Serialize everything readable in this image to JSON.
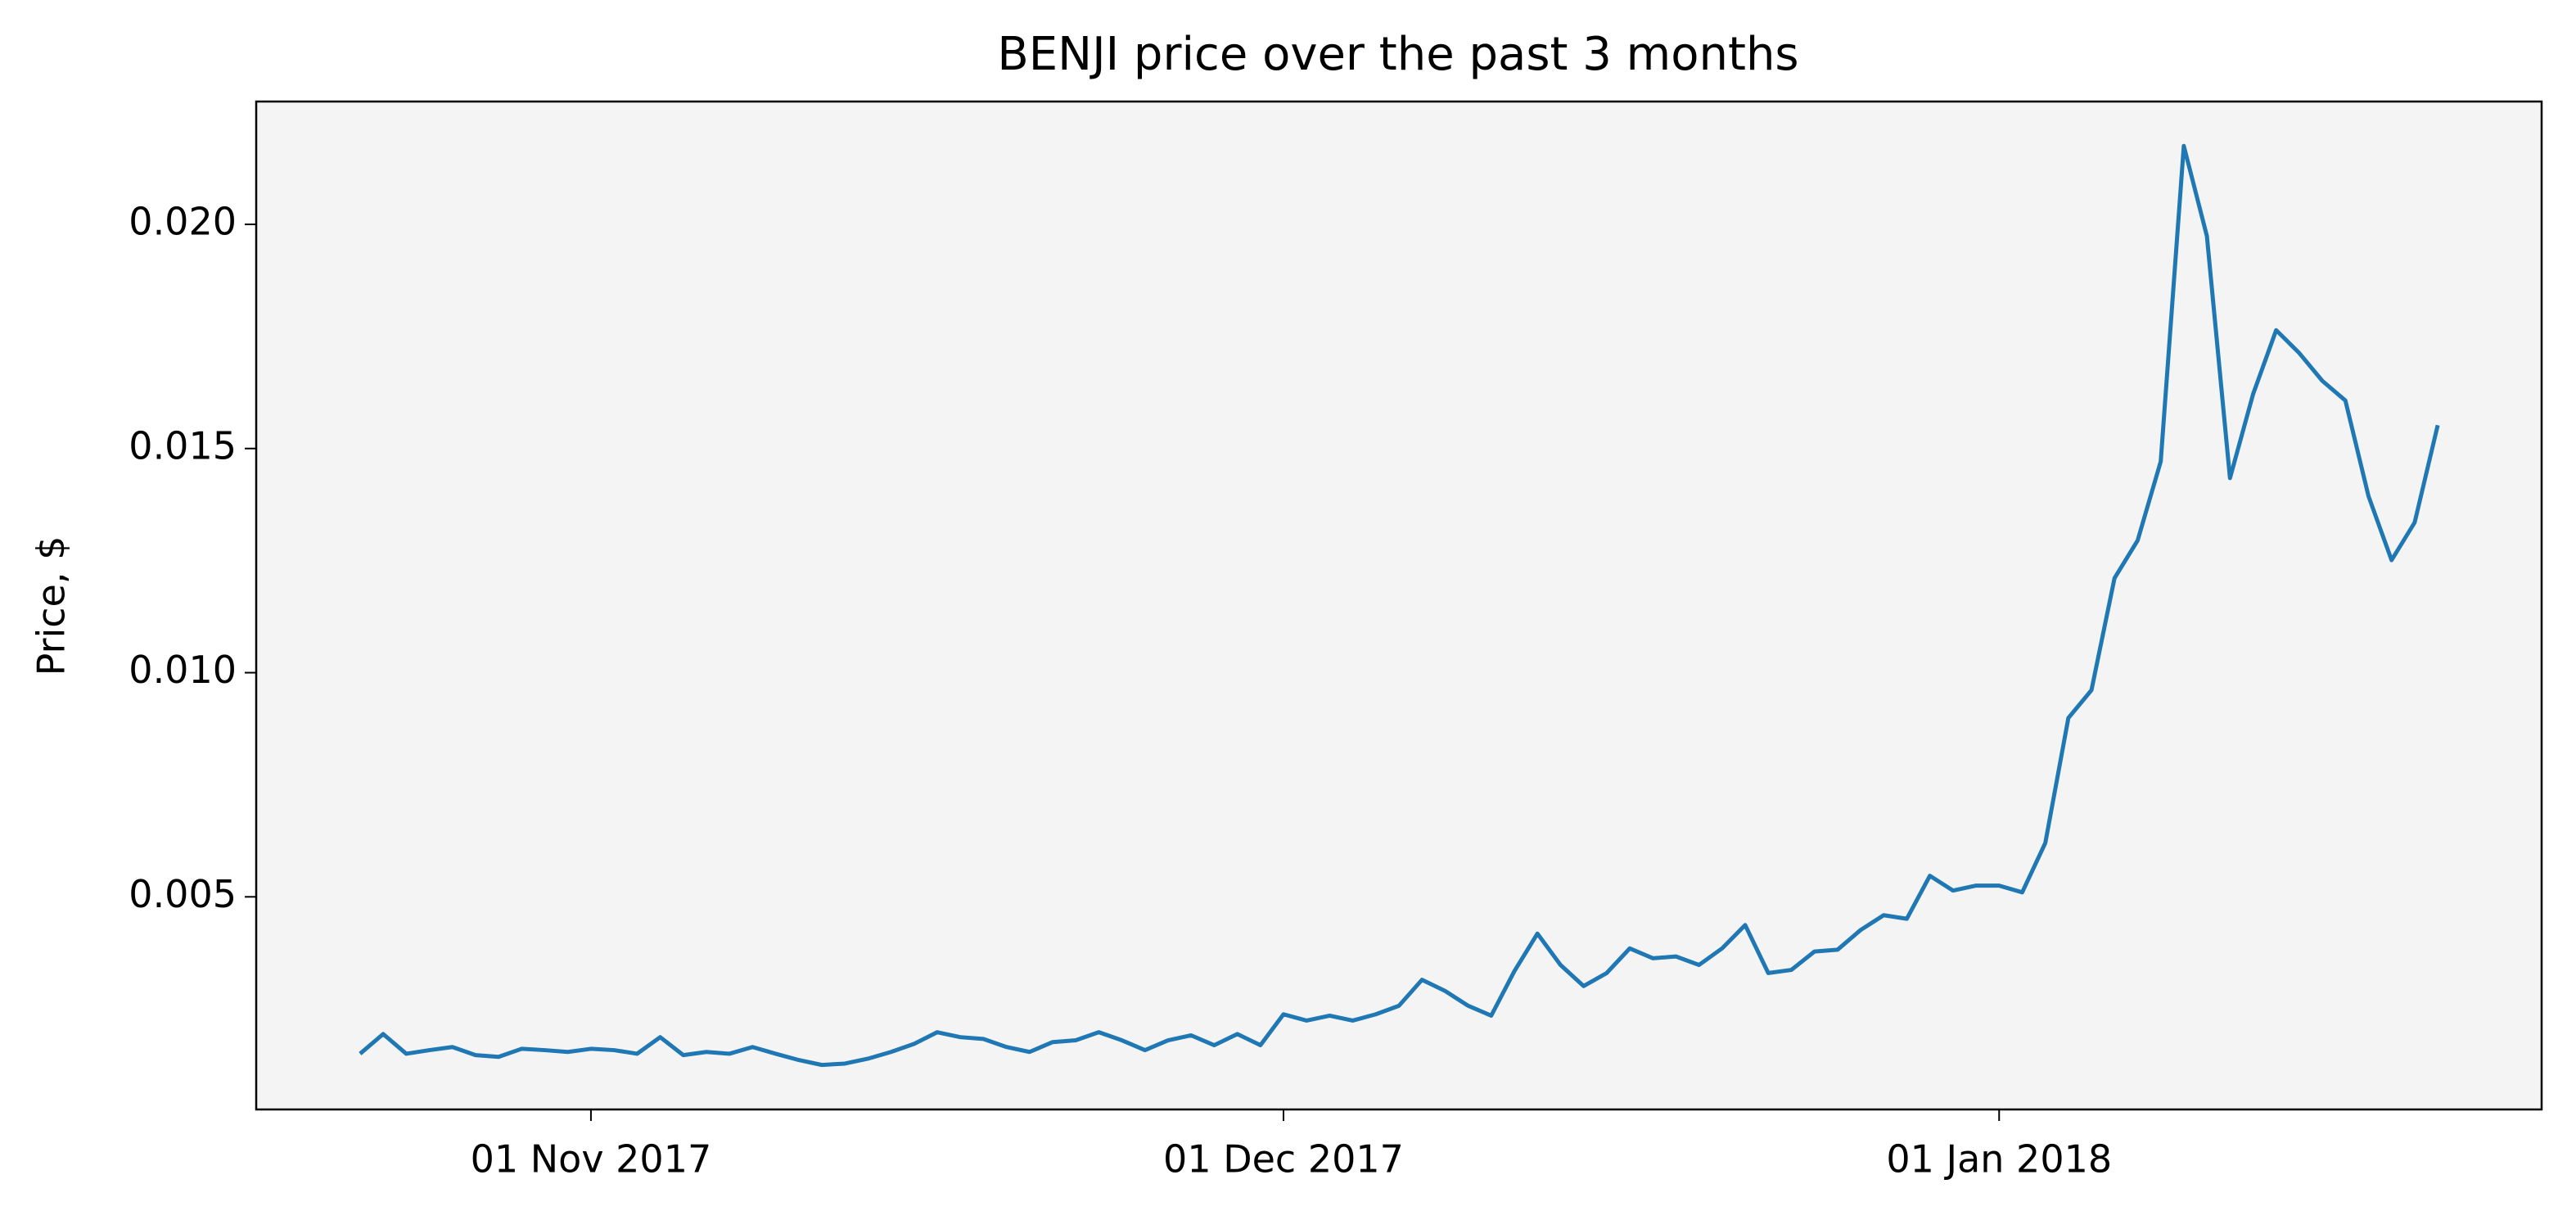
{
  "chart_data": {
    "type": "line",
    "title": "BENJI price over the past 3 months",
    "y_label": "Price, $",
    "x": [
      "2017-10-22",
      "2017-10-23",
      "2017-10-24",
      "2017-10-25",
      "2017-10-26",
      "2017-10-27",
      "2017-10-28",
      "2017-10-29",
      "2017-10-30",
      "2017-10-31",
      "2017-11-01",
      "2017-11-02",
      "2017-11-03",
      "2017-11-04",
      "2017-11-05",
      "2017-11-06",
      "2017-11-07",
      "2017-11-08",
      "2017-11-09",
      "2017-11-10",
      "2017-11-11",
      "2017-11-12",
      "2017-11-13",
      "2017-11-14",
      "2017-11-15",
      "2017-11-16",
      "2017-11-17",
      "2017-11-18",
      "2017-11-19",
      "2017-11-20",
      "2017-11-21",
      "2017-11-22",
      "2017-11-23",
      "2017-11-24",
      "2017-11-25",
      "2017-11-26",
      "2017-11-27",
      "2017-11-28",
      "2017-11-29",
      "2017-11-30",
      "2017-12-01",
      "2017-12-02",
      "2017-12-03",
      "2017-12-04",
      "2017-12-05",
      "2017-12-06",
      "2017-12-07",
      "2017-12-08",
      "2017-12-09",
      "2017-12-10",
      "2017-12-11",
      "2017-12-12",
      "2017-12-13",
      "2017-12-14",
      "2017-12-15",
      "2017-12-16",
      "2017-12-17",
      "2017-12-18",
      "2017-12-19",
      "2017-12-20",
      "2017-12-21",
      "2017-12-22",
      "2017-12-23",
      "2017-12-24",
      "2017-12-25",
      "2017-12-26",
      "2017-12-27",
      "2017-12-28",
      "2017-12-29",
      "2017-12-30",
      "2017-12-31",
      "2018-01-01",
      "2018-01-02",
      "2018-01-03",
      "2018-01-04",
      "2018-01-05",
      "2018-01-06",
      "2018-01-07",
      "2018-01-08",
      "2018-01-09",
      "2018-01-10",
      "2018-01-11",
      "2018-01-12",
      "2018-01-13",
      "2018-01-14",
      "2018-01-15",
      "2018-01-16",
      "2018-01-17",
      "2018-01-18",
      "2018-01-19",
      "2018-01-20"
    ],
    "series": [
      {
        "color": "#1f77b4",
        "values": [
          0.0015,
          0.00194,
          0.0015,
          0.00158,
          0.00165,
          0.00147,
          0.00143,
          0.00161,
          0.00158,
          0.00154,
          0.00161,
          0.00158,
          0.0015,
          0.00187,
          0.00147,
          0.00154,
          0.0015,
          0.00165,
          0.0015,
          0.00136,
          0.00125,
          0.00128,
          0.00139,
          0.00154,
          0.00172,
          0.00198,
          0.00187,
          0.00183,
          0.00165,
          0.00154,
          0.00176,
          0.0018,
          0.00198,
          0.0018,
          0.00158,
          0.0018,
          0.00191,
          0.00169,
          0.00194,
          0.00169,
          0.00238,
          0.00224,
          0.00235,
          0.00224,
          0.00238,
          0.00257,
          0.00315,
          0.0029,
          0.00257,
          0.00235,
          0.00334,
          0.00418,
          0.00348,
          0.00301,
          0.0033,
          0.00385,
          0.00363,
          0.00367,
          0.00348,
          0.00385,
          0.00437,
          0.0033,
          0.00337,
          0.00378,
          0.00382,
          0.00426,
          0.00459,
          0.00451,
          0.00547,
          0.00514,
          0.00525,
          0.00525,
          0.0051,
          0.0062,
          0.00899,
          0.00961,
          0.01211,
          0.01295,
          0.01471,
          0.02175,
          0.01974,
          0.01434,
          0.01621,
          0.01764,
          0.01713,
          0.01651,
          0.01607,
          0.01394,
          0.01251,
          0.01335,
          0.01552
        ]
      }
    ],
    "xlim": [
      "2017-10-17T12:00:00Z",
      "2018-01-24T12:00:00Z"
    ],
    "xticks": [
      {
        "value": "2017-11-01",
        "label": "01 Nov 2017"
      },
      {
        "value": "2017-12-01",
        "label": "01 Dec 2017"
      },
      {
        "value": "2018-01-01",
        "label": "01 Jan 2018"
      }
    ],
    "ylim": [
      0.000257,
      0.02274
    ],
    "yticks": [
      0.005,
      {
        "value": 0.01,
        "label": "0.010"
      },
      0.015,
      {
        "value": 0.02,
        "label": "0.020"
      }
    ],
    "background": "#f4f4f4"
  }
}
